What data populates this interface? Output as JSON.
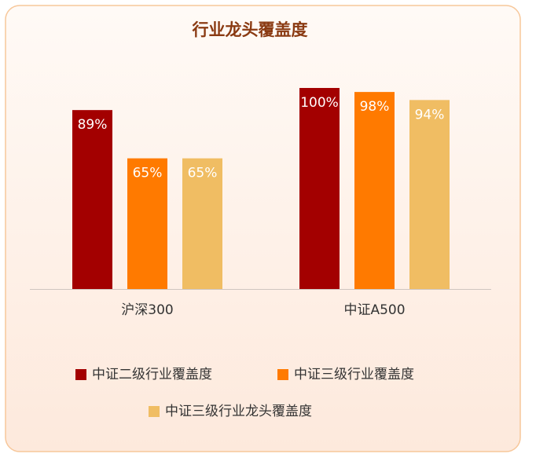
{
  "chart_data": {
    "type": "bar",
    "title": "行业龙头覆盖度",
    "categories": [
      "沪深300",
      "中证A500"
    ],
    "series": [
      {
        "name": "中证二级行业覆盖度",
        "color": "#a30000",
        "values": [
          89,
          100
        ],
        "value_labels": [
          "89%",
          "100%"
        ]
      },
      {
        "name": "中证三级行业覆盖度",
        "color": "#ff7a00",
        "values": [
          65,
          98
        ],
        "value_labels": [
          "65%",
          "98%"
        ]
      },
      {
        "name": "中证三级行业龙头覆盖度",
        "color": "#f0bd63",
        "values": [
          65,
          94
        ],
        "value_labels": [
          "65%",
          "94%"
        ]
      }
    ]
  }
}
